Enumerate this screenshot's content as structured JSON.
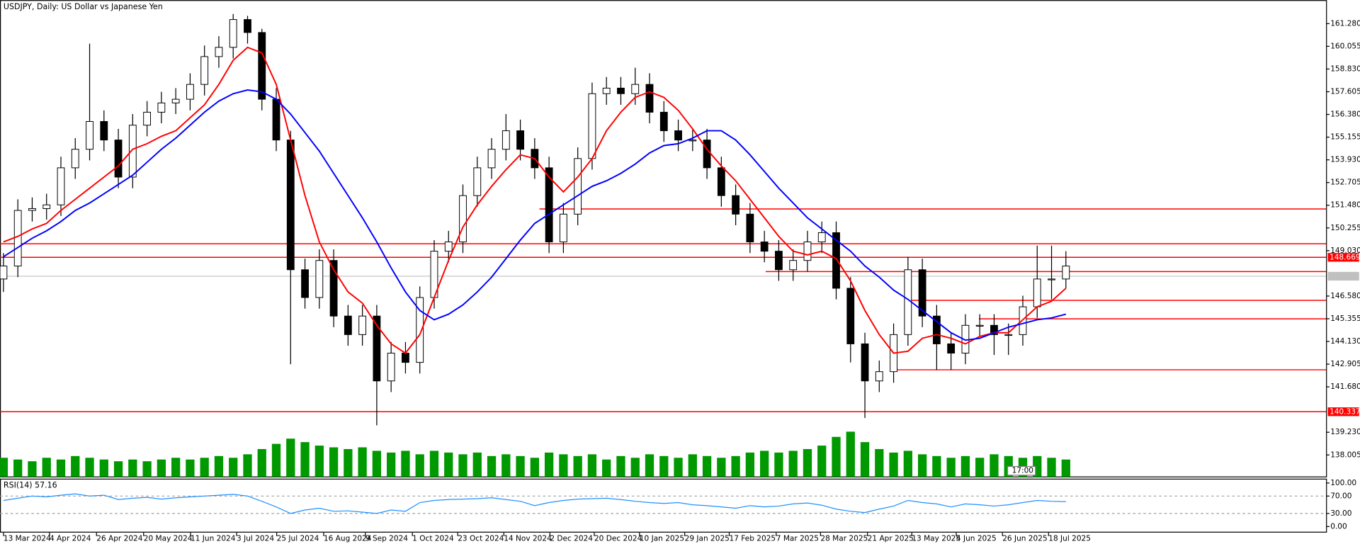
{
  "chart_data": [
    {
      "type": "candlestick",
      "title": "USDJPY, Daily:  US Dollar vs Japanese Yen",
      "color": "#000000",
      "up_fill": "#ffffff",
      "down_fill": "#000000",
      "ylim": [
        136.82,
        162.55
      ],
      "yticks": [
        {
          "value": 161.28,
          "label": "161.280"
        },
        160.055,
        {
          "value": 158.83,
          "label": "158.830"
        },
        157.605,
        {
          "value": 156.38,
          "label": "156.380"
        },
        155.155,
        {
          "value": 153.93,
          "label": "153.930"
        },
        152.705,
        {
          "value": 151.48,
          "label": "151.480"
        },
        150.255,
        {
          "value": 149.03,
          "label": "149.030"
        },
        {
          "value": 146.58,
          "label": "146.580"
        },
        145.355,
        {
          "value": 144.13,
          "label": "144.130"
        },
        142.905,
        {
          "value": 141.68,
          "label": "141.680"
        },
        {
          "value": 139.23,
          "label": "139.230"
        },
        138.005
      ],
      "xticks": [
        {
          "value": 0,
          "label": "13 Mar 2024"
        },
        {
          "value": 3.21,
          "label": "4 Apr 2024"
        },
        {
          "value": 6.48,
          "label": "26 Apr 2024"
        },
        {
          "value": 9.76,
          "label": "20 May 2024"
        },
        {
          "value": 13.03,
          "label": "11 Jun 2024"
        },
        {
          "value": 16.24,
          "label": "3 Jul 2024"
        },
        {
          "value": 19.03,
          "label": "25 Jul 2024"
        },
        {
          "value": 22.3,
          "label": "16 Aug 2024"
        },
        {
          "value": 25.21,
          "label": "9 Sep 2024"
        },
        {
          "value": 28.48,
          "label": "1 Oct 2024"
        },
        {
          "value": 31.64,
          "label": "23 Oct 2024"
        },
        {
          "value": 34.85,
          "label": "14 Nov 2024"
        },
        {
          "value": 38.06,
          "label": "2 Dec 2024"
        },
        {
          "value": 41.15,
          "label": "20 Dec 2024"
        },
        {
          "value": 44.3,
          "label": "10 Jan 2025"
        },
        {
          "value": 47.45,
          "label": "29 Jan 2025"
        },
        {
          "value": 50.55,
          "label": "17 Feb 2025"
        },
        {
          "value": 53.82,
          "label": "7 Mar 2025"
        },
        {
          "value": 56.91,
          "label": "28 Mar 2025"
        },
        {
          "value": 60.18,
          "label": "21 Apr 2025"
        },
        {
          "value": 63.27,
          "label": "13 May 2025"
        },
        {
          "value": 66.36,
          "label": "4 Jun 2025"
        },
        {
          "value": 69.58,
          "label": "26 Jun 2025"
        },
        {
          "value": 72.79,
          "label": "18 Jul 2025"
        }
      ],
      "open": [
        147.5,
        148.2,
        151.2,
        151.3,
        151.5,
        153.5,
        154.5,
        156.0,
        155.0,
        153.0,
        155.8,
        156.5,
        157.0,
        157.2,
        158.0,
        159.5,
        160.0,
        161.5,
        160.8,
        157.2,
        155.0,
        148.0,
        146.5,
        148.5,
        145.5,
        144.5,
        145.5,
        142.0,
        143.5,
        143.0,
        146.5,
        149.0,
        149.5,
        152.0,
        153.5,
        154.5,
        155.5,
        154.5,
        153.5,
        149.5,
        151.0,
        154.0,
        157.5,
        157.8,
        157.5,
        158.0,
        156.5,
        155.5,
        155.0,
        155.0,
        153.5,
        152.0,
        151.0,
        149.5,
        149.0,
        148.0,
        148.5,
        149.5,
        150.0,
        147.0,
        144.0,
        142.0,
        142.5,
        144.5,
        148.0,
        145.5,
        144.0,
        143.5,
        145.0,
        145.0,
        144.5,
        144.5,
        146.0,
        147.5,
        147.5
      ],
      "high": [
        148.9,
        151.8,
        151.9,
        152.1,
        154.1,
        155.1,
        160.2,
        156.6,
        155.6,
        156.4,
        157.1,
        157.6,
        157.8,
        158.6,
        160.1,
        160.6,
        161.8,
        161.7,
        161.0,
        157.8,
        155.5,
        148.6,
        149.1,
        149.1,
        146.1,
        146.1,
        146.1,
        144.1,
        144.1,
        147.1,
        149.6,
        150.1,
        152.6,
        154.1,
        155.1,
        156.4,
        156.1,
        155.1,
        154.1,
        151.6,
        154.6,
        158.1,
        158.4,
        158.4,
        158.9,
        158.6,
        157.1,
        156.1,
        155.6,
        155.6,
        154.1,
        152.6,
        151.6,
        150.1,
        149.6,
        149.1,
        150.1,
        150.6,
        150.6,
        147.6,
        144.6,
        143.1,
        145.1,
        148.7,
        148.6,
        146.1,
        144.6,
        145.6,
        145.6,
        145.6,
        145.1,
        146.6,
        149.3,
        149.3,
        149.0
      ],
      "low": [
        146.8,
        147.6,
        150.6,
        150.7,
        150.9,
        152.9,
        153.9,
        154.4,
        152.4,
        152.4,
        155.2,
        155.9,
        156.4,
        156.6,
        157.4,
        158.9,
        159.4,
        160.2,
        156.6,
        154.4,
        142.9,
        145.9,
        145.9,
        144.9,
        143.9,
        143.9,
        139.6,
        141.4,
        142.4,
        142.4,
        145.9,
        148.4,
        148.9,
        151.4,
        152.9,
        153.9,
        153.9,
        152.9,
        148.9,
        148.9,
        150.4,
        153.4,
        156.9,
        156.9,
        156.9,
        155.9,
        154.9,
        154.4,
        154.4,
        152.9,
        151.4,
        150.4,
        148.9,
        148.4,
        147.4,
        147.4,
        147.9,
        148.9,
        146.4,
        143.0,
        140.0,
        141.4,
        141.9,
        143.9,
        144.9,
        142.6,
        142.6,
        142.9,
        144.4,
        143.4,
        143.4,
        143.9,
        145.4,
        146.4,
        147.0
      ],
      "close": [
        148.2,
        151.2,
        151.3,
        151.5,
        153.5,
        154.5,
        156.0,
        155.0,
        153.0,
        155.8,
        156.5,
        157.0,
        157.2,
        158.0,
        159.5,
        160.0,
        161.5,
        160.8,
        157.2,
        155.0,
        148.0,
        146.5,
        148.5,
        145.5,
        144.5,
        145.5,
        142.0,
        143.5,
        143.0,
        146.5,
        149.0,
        149.5,
        152.0,
        153.5,
        154.5,
        155.5,
        154.5,
        153.5,
        149.5,
        151.0,
        154.0,
        157.5,
        157.8,
        157.5,
        158.0,
        156.5,
        155.5,
        155.0,
        155.0,
        153.5,
        152.0,
        151.0,
        149.5,
        149.0,
        148.0,
        148.5,
        149.5,
        150.0,
        147.0,
        144.0,
        142.0,
        142.5,
        144.5,
        148.0,
        145.5,
        144.0,
        143.5,
        145.0,
        145.0,
        144.5,
        144.5,
        146.0,
        147.5,
        147.5,
        148.2
      ],
      "series": [
        {
          "color": "#ff0000",
          "values": [
            149.5,
            149.8,
            150.2,
            150.5,
            151.2,
            151.8,
            152.4,
            153,
            153.6,
            154.5,
            154.8,
            155.2,
            155.5,
            156.2,
            156.9,
            158,
            159.3,
            160,
            159.7,
            158,
            155,
            152,
            149.5,
            148,
            146.8,
            146.2,
            145,
            144,
            143.5,
            144.5,
            146.5,
            148.5,
            150.3,
            151.5,
            152.5,
            153.4,
            154.2,
            154,
            153,
            152.2,
            153,
            154,
            155.5,
            156.5,
            157.3,
            157.6,
            157.3,
            156.6,
            155.6,
            154.5,
            153.6,
            152.8,
            151.8,
            150.8,
            149.8,
            149,
            148.8,
            149,
            148.6,
            147.4,
            145.8,
            144.5,
            143.5,
            143.6,
            144.3,
            144.5,
            144.3,
            144,
            144.4,
            144.6,
            144.6,
            145.3,
            146,
            146.3,
            147
          ]
        },
        {
          "color": "#0000ff",
          "values": [
            148.7,
            149.2,
            149.7,
            150.1,
            150.6,
            151.2,
            151.6,
            152.1,
            152.6,
            153.1,
            153.8,
            154.5,
            155.1,
            155.8,
            156.5,
            157.1,
            157.5,
            157.7,
            157.6,
            157.2,
            156.4,
            155.4,
            154.4,
            153.2,
            152,
            150.8,
            149.5,
            148.1,
            146.8,
            145.8,
            145.3,
            145.6,
            146.1,
            146.8,
            147.6,
            148.6,
            149.6,
            150.5,
            151,
            151.5,
            152,
            152.5,
            152.8,
            153.2,
            153.7,
            154.3,
            154.7,
            154.8,
            155.1,
            155.5,
            155.5,
            155,
            154.2,
            153.3,
            152.4,
            151.6,
            150.8,
            150.2,
            149.6,
            149,
            148.2,
            147.6,
            146.9,
            146.4,
            145.8,
            145.2,
            144.6,
            144.2,
            144.3,
            144.6,
            144.9,
            145.1,
            145.3,
            145.4,
            145.6
          ]
        }
      ],
      "volume_color": "#009900",
      "volume": [
        22,
        20,
        18,
        22,
        20,
        24,
        22,
        20,
        18,
        20,
        18,
        20,
        22,
        20,
        22,
        24,
        22,
        26,
        32,
        38,
        44,
        40,
        36,
        34,
        32,
        34,
        30,
        28,
        30,
        26,
        30,
        28,
        26,
        28,
        24,
        26,
        24,
        22,
        28,
        26,
        24,
        26,
        20,
        24,
        22,
        26,
        24,
        22,
        26,
        24,
        22,
        24,
        28,
        30,
        28,
        30,
        32,
        36,
        46,
        52,
        40,
        32,
        28,
        30,
        26,
        24,
        22,
        24,
        22,
        26,
        24,
        22,
        24,
        22,
        20
      ],
      "levels": [
        151.28,
        149.4,
        148.669,
        147.9,
        146.35,
        145.35,
        142.6,
        140.337
      ],
      "level_color": "#ff0000",
      "labeled_levels": [
        148.669,
        140.337
      ],
      "current_price": 147.65,
      "current_color": "#c0c0c0",
      "time_label": "17:00"
    },
    {
      "type": "line",
      "title": "RSI(14) 57.16",
      "color": "#1e90ff",
      "ylim": [
        0,
        100
      ],
      "yticks": [
        {
          "value": 100,
          "label": "100.00"
        },
        {
          "value": 70,
          "label": "70.00"
        },
        {
          "value": 30,
          "label": "30.00"
        },
        {
          "value": 0,
          "label": "0.00"
        }
      ],
      "dashed_levels": [
        70,
        30
      ],
      "values": [
        60,
        65,
        70,
        68,
        72,
        75,
        70,
        72,
        62,
        65,
        67,
        63,
        66,
        68,
        70,
        72,
        74,
        70,
        58,
        45,
        30,
        38,
        42,
        35,
        36,
        33,
        30,
        38,
        35,
        55,
        60,
        62,
        63,
        64,
        66,
        62,
        58,
        48,
        55,
        60,
        63,
        64,
        65,
        62,
        58,
        55,
        53,
        55,
        50,
        48,
        45,
        42,
        48,
        45,
        47,
        52,
        54,
        49,
        40,
        35,
        32,
        40,
        47,
        60,
        55,
        52,
        45,
        52,
        50,
        47,
        50,
        55,
        60,
        58,
        57.16
      ]
    }
  ]
}
